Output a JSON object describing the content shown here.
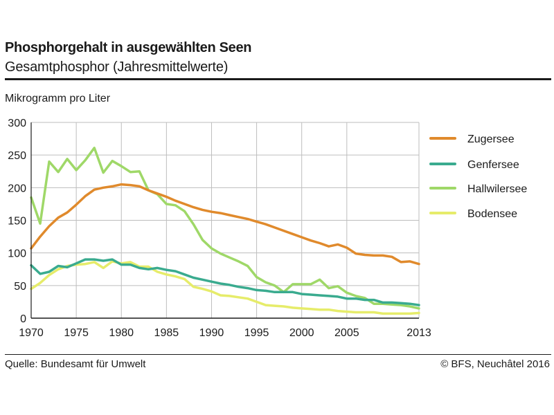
{
  "header": {
    "title": "Phosphorgehalt in ausgewählten Seen",
    "subtitle": "Gesamtphosphor (Jahresmittelwerte)",
    "unit": "Mikrogramm pro Liter"
  },
  "footer": {
    "source": "Quelle: Bundesamt für Umwelt",
    "copyright": "© BFS, Neuchâtel 2016"
  },
  "chart_data": {
    "type": "line",
    "title": "Phosphorgehalt in ausgewählten Seen",
    "subtitle": "Gesamtphosphor (Jahresmittelwerte)",
    "ylabel": "Mikrogramm pro Liter",
    "xlim": [
      1970,
      2013
    ],
    "ylim": [
      0,
      300
    ],
    "x_ticks": [
      1970,
      1975,
      1980,
      1985,
      1990,
      1995,
      2000,
      2005,
      2013
    ],
    "y_ticks": [
      0,
      50,
      100,
      150,
      200,
      250,
      300
    ],
    "grid": true,
    "legend_position": "right",
    "x": [
      1970,
      1971,
      1972,
      1973,
      1974,
      1975,
      1976,
      1977,
      1978,
      1979,
      1980,
      1981,
      1982,
      1983,
      1984,
      1985,
      1986,
      1987,
      1988,
      1989,
      1990,
      1991,
      1992,
      1993,
      1994,
      1995,
      1996,
      1997,
      1998,
      1999,
      2000,
      2001,
      2002,
      2003,
      2004,
      2005,
      2006,
      2007,
      2008,
      2009,
      2010,
      2011,
      2012,
      2013
    ],
    "series": [
      {
        "name": "Zugersee",
        "color": "#e08a2c",
        "values": [
          107,
          125,
          141,
          154,
          162,
          174,
          187,
          197,
          200,
          202,
          205,
          204,
          202,
          196,
          191,
          186,
          180,
          175,
          170,
          166,
          163,
          161,
          158,
          155,
          152,
          148,
          144,
          139,
          134,
          129,
          124,
          119,
          115,
          110,
          113,
          108,
          99,
          97,
          96,
          96,
          94,
          86,
          87,
          83
        ]
      },
      {
        "name": "Genfersee",
        "color": "#3aab8f",
        "values": [
          81,
          68,
          71,
          80,
          78,
          84,
          90,
          90,
          88,
          90,
          82,
          82,
          77,
          75,
          77,
          74,
          72,
          67,
          62,
          59,
          56,
          53,
          51,
          48,
          46,
          43,
          42,
          40,
          40,
          40,
          37,
          36,
          35,
          34,
          33,
          30,
          30,
          28,
          28,
          24,
          24,
          23,
          22,
          20
        ]
      },
      {
        "name": "Hallwilersee",
        "color": "#9fd868",
        "values": [
          185,
          145,
          240,
          224,
          244,
          227,
          242,
          261,
          223,
          241,
          233,
          224,
          225,
          196,
          190,
          175,
          173,
          164,
          144,
          120,
          107,
          99,
          93,
          87,
          80,
          63,
          55,
          50,
          40,
          52,
          52,
          52,
          59,
          46,
          49,
          39,
          34,
          31,
          22,
          22,
          21,
          20,
          18,
          15
        ]
      },
      {
        "name": "Bodensee",
        "color": "#e6ec6a",
        "values": [
          45,
          54,
          66,
          75,
          80,
          82,
          83,
          86,
          77,
          87,
          84,
          86,
          79,
          79,
          71,
          67,
          64,
          60,
          48,
          45,
          41,
          35,
          34,
          32,
          30,
          25,
          20,
          19,
          18,
          16,
          15,
          14,
          13,
          13,
          11,
          10,
          9,
          9,
          9,
          7,
          7,
          7,
          7,
          8
        ]
      }
    ]
  }
}
